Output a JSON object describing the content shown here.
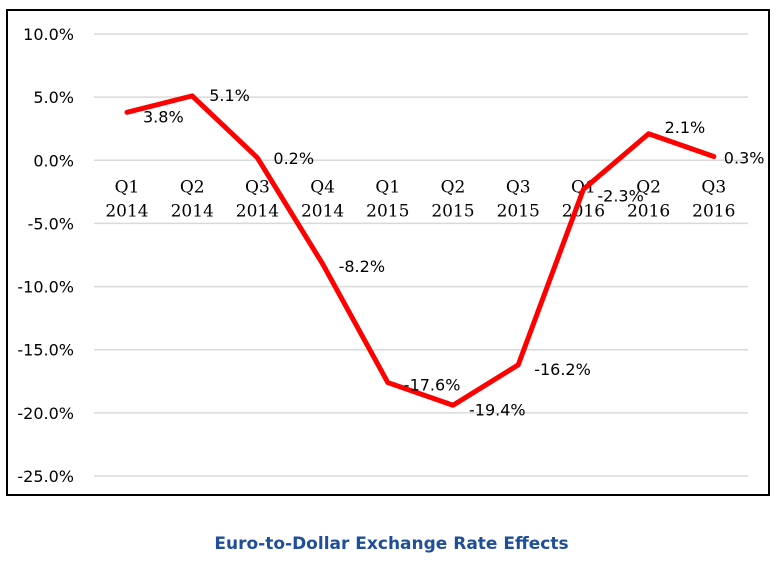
{
  "caption": "Euro-to-Dollar Exchange Rate Effects",
  "chart_data": {
    "type": "line",
    "categories": [
      [
        "Q1",
        "2014"
      ],
      [
        "Q2",
        "2014"
      ],
      [
        "Q3",
        "2014"
      ],
      [
        "Q4",
        "2014"
      ],
      [
        "Q1",
        "2015"
      ],
      [
        "Q2",
        "2015"
      ],
      [
        "Q3",
        "2015"
      ],
      [
        "Q1",
        "2016"
      ],
      [
        "Q2",
        "2016"
      ],
      [
        "Q3",
        "2016"
      ]
    ],
    "series": [
      {
        "values": [
          3.8,
          5.1,
          0.2,
          -8.2,
          -17.6,
          -19.4,
          -16.2,
          -2.3,
          2.1,
          0.3
        ],
        "labels": [
          "3.8%",
          "5.1%",
          "0.2%",
          "-8.2%",
          "-17.6%",
          "-19.4%",
          "-16.2%",
          "-2.3%",
          "2.1%",
          "0.3%"
        ],
        "color": "#ff0000"
      }
    ],
    "y_ticks": [
      10,
      5,
      0,
      -5,
      -10,
      -15,
      -20,
      -25
    ],
    "y_tick_labels": [
      "10.0%",
      "5.0%",
      "0.0%",
      "-5.0%",
      "-10.0%",
      "-15.0%",
      "-20.0%",
      "-25.0%"
    ],
    "ylim": [
      -25,
      10
    ],
    "grid": true,
    "gridline_color": "#d9d9d9",
    "legend": "none"
  }
}
